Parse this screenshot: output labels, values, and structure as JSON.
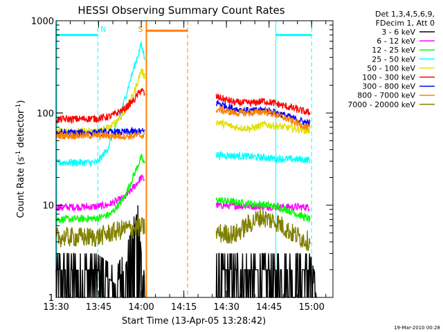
{
  "chart_data": {
    "type": "line",
    "title": "HESSI Observing Summary Count Rates",
    "xlabel": "Start Time (13-Apr-05 13:28:42)",
    "ylabel_main": "Count Rate (s",
    "ylabel_sup1": "-1",
    "ylabel_mid": " detector",
    "ylabel_sup2": "-1",
    "ylabel_end": ")",
    "y_scale": "log",
    "ylim": [
      1,
      1000
    ],
    "xlim": [
      13.5,
      15.125
    ],
    "x_ticks": [
      {
        "value": 13.5,
        "label": "13:30"
      },
      {
        "value": 13.75,
        "label": "13:45"
      },
      {
        "value": 14.0,
        "label": "14:00"
      },
      {
        "value": 14.25,
        "label": "14:15"
      },
      {
        "value": 14.5,
        "label": "14:30"
      },
      {
        "value": 14.75,
        "label": "14:45"
      },
      {
        "value": 15.0,
        "label": "15:00"
      }
    ],
    "y_ticks": [
      {
        "value": 1,
        "label": "1"
      },
      {
        "value": 10,
        "label": "10"
      },
      {
        "value": 100,
        "label": "100"
      },
      {
        "value": 1000,
        "label": "1000"
      }
    ],
    "legend_header": [
      "Det 1,3,4,5,6,9,",
      "FDecim 1, Att 0"
    ],
    "legend_position": "right",
    "data_gap": [
      14.02,
      14.44
    ],
    "series": [
      {
        "name": "3 - 6 keV",
        "color": "#000000",
        "points": [
          [
            13.5,
            2
          ],
          [
            13.74,
            2
          ],
          [
            13.85,
            1.4
          ],
          [
            13.9,
            2
          ],
          [
            13.95,
            4
          ],
          [
            13.98,
            10
          ],
          [
            14.0,
            3
          ],
          [
            14.02,
            1
          ]
        ],
        "points2": [
          [
            14.44,
            2
          ],
          [
            14.8,
            2
          ],
          [
            14.99,
            2
          ],
          [
            15.03,
            1
          ]
        ]
      },
      {
        "name": "6 - 12 keV",
        "color": "#ff00ff",
        "points": [
          [
            13.5,
            9.5
          ],
          [
            13.72,
            9.6
          ],
          [
            13.8,
            10
          ],
          [
            13.9,
            12
          ],
          [
            13.96,
            16
          ],
          [
            14.0,
            20
          ],
          [
            14.02,
            19
          ]
        ],
        "points2": [
          [
            14.44,
            10
          ],
          [
            14.6,
            9.8
          ],
          [
            14.8,
            9.6
          ],
          [
            14.99,
            9.5
          ]
        ]
      },
      {
        "name": "12 - 25 keV",
        "color": "#00ff00",
        "points": [
          [
            13.5,
            7
          ],
          [
            13.74,
            7.2
          ],
          [
            13.82,
            8
          ],
          [
            13.9,
            12
          ],
          [
            13.96,
            22
          ],
          [
            14.0,
            33
          ],
          [
            14.02,
            28
          ]
        ],
        "points2": [
          [
            14.44,
            11.5
          ],
          [
            14.6,
            10.5
          ],
          [
            14.75,
            10
          ],
          [
            14.85,
            9
          ],
          [
            14.99,
            7
          ]
        ]
      },
      {
        "name": "25 - 50 keV",
        "color": "#00ffff",
        "points": [
          [
            13.5,
            29
          ],
          [
            13.74,
            29
          ],
          [
            13.8,
            40
          ],
          [
            13.88,
            100
          ],
          [
            13.95,
            280
          ],
          [
            14.0,
            550
          ],
          [
            14.02,
            400
          ]
        ],
        "points2": [
          [
            14.44,
            35
          ],
          [
            14.6,
            34
          ],
          [
            14.8,
            32
          ],
          [
            14.99,
            31
          ]
        ]
      },
      {
        "name": "50 - 100 keV",
        "color": "#e0e000",
        "points": [
          [
            13.5,
            63
          ],
          [
            13.74,
            63
          ],
          [
            13.82,
            70
          ],
          [
            13.9,
            100
          ],
          [
            13.96,
            170
          ],
          [
            14.0,
            290
          ],
          [
            14.02,
            250
          ]
        ],
        "points2": [
          [
            14.44,
            80
          ],
          [
            14.55,
            70
          ],
          [
            14.65,
            68
          ],
          [
            14.72,
            75
          ],
          [
            14.8,
            72
          ],
          [
            14.99,
            64
          ]
        ]
      },
      {
        "name": "100 - 300 keV",
        "color": "#ff0000",
        "points": [
          [
            13.5,
            85
          ],
          [
            13.74,
            87
          ],
          [
            13.82,
            92
          ],
          [
            13.9,
            110
          ],
          [
            13.96,
            140
          ],
          [
            14.0,
            180
          ],
          [
            14.02,
            160
          ]
        ],
        "points2": [
          [
            14.44,
            150
          ],
          [
            14.55,
            130
          ],
          [
            14.65,
            128
          ],
          [
            14.72,
            135
          ],
          [
            14.8,
            125
          ],
          [
            14.99,
            100
          ]
        ]
      },
      {
        "name": "300 - 800 keV",
        "color": "#0000ff",
        "points": [
          [
            13.5,
            61
          ],
          [
            13.74,
            61
          ],
          [
            13.9,
            62
          ],
          [
            14.0,
            63
          ],
          [
            14.02,
            63
          ]
        ],
        "points2": [
          [
            14.44,
            130
          ],
          [
            14.55,
            110
          ],
          [
            14.65,
            105
          ],
          [
            14.72,
            108
          ],
          [
            14.8,
            100
          ],
          [
            14.99,
            76
          ]
        ]
      },
      {
        "name": "800 - 7000 keV",
        "color": "#ff8000",
        "points": [
          [
            13.5,
            57
          ],
          [
            13.74,
            57
          ],
          [
            13.9,
            56
          ],
          [
            14.0,
            57
          ],
          [
            14.02,
            57
          ]
        ],
        "points2": [
          [
            14.44,
            110
          ],
          [
            14.55,
            100
          ],
          [
            14.65,
            100
          ],
          [
            14.72,
            104
          ],
          [
            14.8,
            95
          ],
          [
            14.99,
            68
          ]
        ]
      },
      {
        "name": "7000 - 20000 keV",
        "color": "#808000",
        "points": [
          [
            13.5,
            4.5
          ],
          [
            13.74,
            4.5
          ],
          [
            13.82,
            5
          ],
          [
            13.9,
            5.5
          ],
          [
            14.0,
            5.8
          ],
          [
            14.02,
            5.8
          ]
        ],
        "points2": [
          [
            14.44,
            5
          ],
          [
            14.55,
            4.8
          ],
          [
            14.62,
            6
          ],
          [
            14.7,
            7.5
          ],
          [
            14.8,
            6.5
          ],
          [
            14.88,
            5
          ],
          [
            14.99,
            4
          ]
        ]
      }
    ],
    "annotations": {
      "night_label": "N",
      "saa_label": "S",
      "night_intervals": [
        [
          13.5,
          13.745
        ],
        [
          14.79,
          15.0
        ]
      ],
      "saa_interval": [
        14.03,
        14.272
      ],
      "night_bar_level": 700,
      "saa_bar_level": 780,
      "cyan_color": "#00ffff",
      "orange_color": "#ff8000"
    },
    "footer_date": "19-Mar-2010 00:28"
  }
}
